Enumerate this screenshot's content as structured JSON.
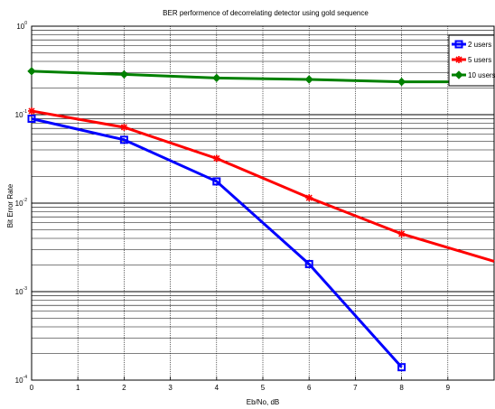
{
  "chart_data": {
    "type": "line",
    "title": "BER performence of decorrelating detector using gold sequence",
    "xlabel": "Eb/No, dB",
    "ylabel": "Bit Error Rate",
    "xlim": [
      0,
      10
    ],
    "ylim": [
      0.0001,
      1
    ],
    "yscale": "log",
    "grid": true,
    "x_ticks": [
      "0",
      "1",
      "2",
      "3",
      "4",
      "5",
      "6",
      "7",
      "8",
      "9"
    ],
    "y_ticks": [
      {
        "base": "10",
        "exp": "0"
      },
      {
        "base": "10",
        "exp": "-1"
      },
      {
        "base": "10",
        "exp": "-2"
      },
      {
        "base": "10",
        "exp": "-3"
      },
      {
        "base": "10",
        "exp": "-4"
      }
    ],
    "legend_position": "top-right",
    "series": [
      {
        "name": "2 users",
        "color": "#0000ff",
        "marker": "square",
        "x": [
          0,
          2,
          4,
          6,
          8
        ],
        "y": [
          0.09,
          0.052,
          0.0176,
          0.00205,
          0.00014
        ]
      },
      {
        "name": "5 users",
        "color": "#ff0000",
        "marker": "star",
        "x": [
          0,
          2,
          4,
          6,
          8,
          10
        ],
        "y": [
          0.11,
          0.072,
          0.032,
          0.0115,
          0.0045,
          0.0022
        ]
      },
      {
        "name": "10 users",
        "color": "#008000",
        "marker": "diamond",
        "x": [
          0,
          2,
          4,
          6,
          8,
          10
        ],
        "y": [
          0.31,
          0.285,
          0.26,
          0.25,
          0.235,
          0.235
        ]
      }
    ]
  }
}
